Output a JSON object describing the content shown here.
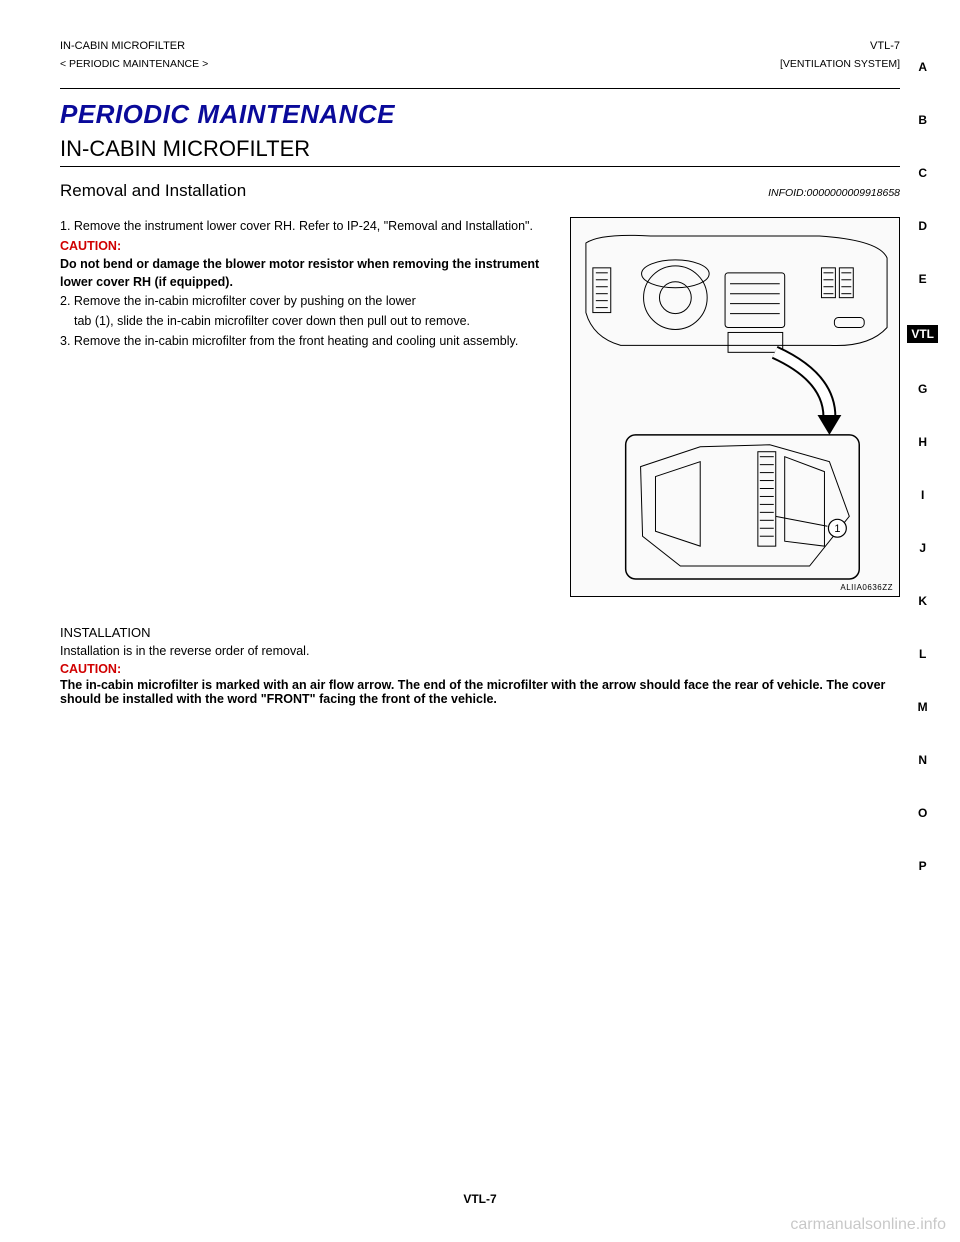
{
  "meta": {
    "left_top": "IN-CABIN MICROFILTER",
    "right_top": "VTL-7",
    "breadcrumb": "[VENTILATION SYSTEM]",
    "breadcrumb_right": "< PERIODIC MAINTENANCE >"
  },
  "headings": {
    "main": "PERIODIC MAINTENANCE",
    "sub": "IN-CABIN MICROFILTER",
    "proc_label": "Removal and Installation",
    "proc_code": "INFOID:0000000009918658",
    "install_heading": "INSTALLATION"
  },
  "removal": {
    "step1": "1. Remove the instrument lower cover RH. Refer to IP-24, \"Removal and Installation\".",
    "caution_label": "CAUTION:",
    "caution_body": "Do not bend or damage the blower motor resistor when removing the instrument lower cover RH (if equipped).",
    "step2_line1": "2. Remove the in-cabin microfilter cover by pushing on the lower",
    "step2_line2": "tab (1), slide the in-cabin microfilter cover down then pull out to remove.",
    "step3": "3. Remove the in-cabin microfilter from the front heating and cooling unit assembly."
  },
  "install": {
    "body": "Installation is in the reverse order of removal.",
    "caution_label": "CAUTION:",
    "caution_body": "The in-cabin microfilter is marked with an air flow arrow. The end of the microfilter with the arrow should face the rear of vehicle. The cover should be installed with the word \"FRONT\" facing the front of the vehicle."
  },
  "figure": {
    "code": "ALIIA0636ZZ",
    "callout": "1"
  },
  "side_index": [
    "A",
    "B",
    "C",
    "D",
    "E",
    "VTL",
    "G",
    "H",
    "I",
    "J",
    "K",
    "L",
    "M",
    "N",
    "O",
    "P"
  ],
  "side_current": "VTL",
  "page_number": "VTL-7",
  "watermark": "carmanualsonline.info",
  "colors": {
    "title": "#0a0a9a",
    "caution": "#d00000",
    "text": "#000000",
    "bg": "#ffffff"
  }
}
